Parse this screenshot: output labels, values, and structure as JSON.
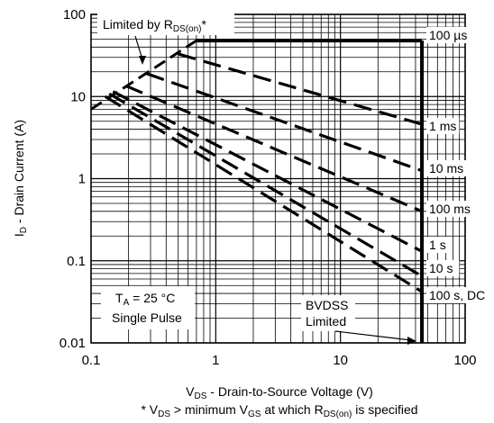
{
  "chart_data": {
    "type": "line",
    "x_scale": "log",
    "y_scale": "log",
    "xlim": [
      0.1,
      100
    ],
    "ylim": [
      0.01,
      100
    ],
    "grid": true,
    "x_ticks": [
      "0.1",
      "1",
      "10",
      "100"
    ],
    "y_ticks": [
      "0.01",
      "0.1",
      "1",
      "10",
      "100"
    ],
    "xlabel": {
      "pre": "V",
      "sub": "DS",
      "post": " - Drain-to-Source Voltage (V)"
    },
    "ylabel": {
      "pre": "I",
      "sub": "D",
      "post": " - Drain Current (A)"
    },
    "footnote": [
      {
        "t": "* V"
      },
      {
        "t": "DS",
        "sub": true
      },
      {
        "t": " > minimum V"
      },
      {
        "t": "GS",
        "sub": true
      },
      {
        "t": " at which R"
      },
      {
        "t": "DS(on)",
        "sub": true
      },
      {
        "t": " is specified"
      }
    ],
    "annotations": {
      "rds_limit": [
        {
          "t": "Limited by R"
        },
        {
          "t": "DS(on)",
          "sub": true
        },
        {
          "t": "*"
        }
      ],
      "conditions": {
        "line1": [
          {
            "t": "T"
          },
          {
            "t": "A",
            "sub": true
          },
          {
            "t": " = 25 °C"
          }
        ],
        "line2": "Single Pulse"
      },
      "bvdss": [
        "BVDSS",
        "Limited"
      ]
    },
    "rds_limit_line": {
      "x": [
        0.1,
        0.7
      ],
      "y": [
        7.0,
        48.0
      ]
    },
    "series": [
      {
        "name": "100 µs",
        "x": [
          0.7,
          45
        ],
        "y": [
          48,
          48
        ],
        "style": "solid-bold"
      },
      {
        "name": "1 ms",
        "x": [
          0.5,
          45
        ],
        "y": [
          33,
          4.6
        ],
        "style": "dashed"
      },
      {
        "name": "10 ms",
        "x": [
          0.28,
          45
        ],
        "y": [
          19,
          1.25
        ],
        "style": "dashed"
      },
      {
        "name": "100 ms",
        "x": [
          0.19,
          45
        ],
        "y": [
          13.5,
          0.4
        ],
        "style": "dashed"
      },
      {
        "name": "1 s",
        "x": [
          0.15,
          45
        ],
        "y": [
          11.5,
          0.13
        ],
        "style": "dashed"
      },
      {
        "name": "10 s",
        "x": [
          0.14,
          45
        ],
        "y": [
          10.8,
          0.065
        ],
        "style": "dashed"
      },
      {
        "name": "100 s, DC",
        "x": [
          0.13,
          45
        ],
        "y": [
          10.0,
          0.042
        ],
        "style": "dashed"
      }
    ],
    "bvdss_voltage": 45
  }
}
